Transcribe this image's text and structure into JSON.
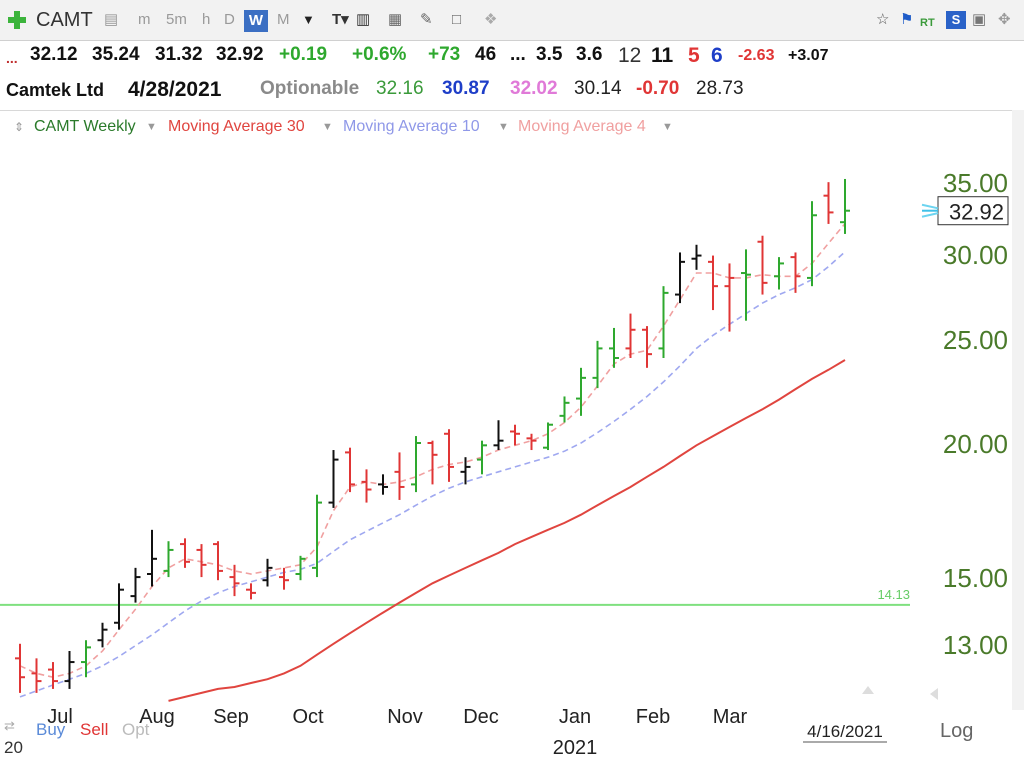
{
  "toolbar": {
    "symbol": "CAMT",
    "items": [
      "m",
      "5m",
      "h",
      "D",
      "W",
      "M"
    ],
    "active": "W",
    "rt": "RT"
  },
  "quote_line1": {
    "ellipsis": "...",
    "open": "32.12",
    "high": "35.24",
    "low": "31.32",
    "close": "32.92",
    "change": "+0.19",
    "change_pct": "+0.6%",
    "v1": "+73",
    "v2": "46",
    "dots": "...",
    "v3": "3.5",
    "v4": "3.6",
    "v5": "12",
    "v6": "11",
    "v7": "5",
    "v8": "6",
    "v9": "-2.63",
    "v10": "+3.07"
  },
  "quote_line2": {
    "name": "Camtek Ltd",
    "date": "4/28/2021",
    "optionable": "Optionable",
    "ma_a": "32.16",
    "ma_b": "30.87",
    "ma_c": "32.02",
    "ma_d": "30.14",
    "ma_e": "-0.70",
    "ma_f": "28.73"
  },
  "legend": {
    "series_main": "CAMT Weekly",
    "ma30": "Moving Average 30",
    "ma10": "Moving Average 10",
    "ma4": "Moving Average 4"
  },
  "colors": {
    "up": "#2ea82e",
    "down": "#e03535",
    "neutral": "#111111",
    "ma30": "#e0453f",
    "ma10": "#9fa8f0",
    "ma4": "#f0a0a0",
    "axis_text": "#4a7a2a",
    "hline": "#7fe07f"
  },
  "footer": {
    "buy": "Buy",
    "sell": "Sell",
    "opt": "Opt",
    "year_prefix": "20",
    "log": "Log"
  },
  "chart_data": {
    "type": "ohlc",
    "scale": "log",
    "ylim": [
      11.4,
      37.5
    ],
    "yticks": [
      "35.00",
      "30.00",
      "25.00",
      "20.00",
      "15.00",
      "13.00"
    ],
    "last_price": "32.92",
    "hline": {
      "value": 14.13,
      "label": "14.13"
    },
    "x_labels": [
      "Jul",
      "Aug",
      "Sep",
      "Oct",
      "Nov",
      "Dec",
      "Jan",
      "Feb",
      "Mar"
    ],
    "year_label": "2021",
    "date_label": "4/16/2021",
    "bars": [
      {
        "o": 12.6,
        "h": 13.0,
        "l": 11.7,
        "c": 12.1,
        "d": "down"
      },
      {
        "o": 12.2,
        "h": 12.6,
        "l": 11.7,
        "c": 12.0,
        "d": "down"
      },
      {
        "o": 12.3,
        "h": 12.5,
        "l": 11.8,
        "c": 12.0,
        "d": "down"
      },
      {
        "o": 12.0,
        "h": 12.8,
        "l": 11.8,
        "c": 12.5,
        "d": "neutral"
      },
      {
        "o": 12.5,
        "h": 13.1,
        "l": 12.1,
        "c": 12.9,
        "d": "up"
      },
      {
        "o": 13.1,
        "h": 13.6,
        "l": 12.9,
        "c": 13.4,
        "d": "neutral"
      },
      {
        "o": 13.6,
        "h": 14.8,
        "l": 13.4,
        "c": 14.6,
        "d": "neutral"
      },
      {
        "o": 14.4,
        "h": 15.3,
        "l": 14.2,
        "c": 15.0,
        "d": "neutral"
      },
      {
        "o": 15.1,
        "h": 16.6,
        "l": 14.7,
        "c": 15.6,
        "d": "neutral"
      },
      {
        "o": 15.2,
        "h": 16.2,
        "l": 15.0,
        "c": 15.9,
        "d": "up"
      },
      {
        "o": 16.1,
        "h": 16.3,
        "l": 15.3,
        "c": 15.5,
        "d": "down"
      },
      {
        "o": 15.9,
        "h": 16.1,
        "l": 15.0,
        "c": 15.4,
        "d": "down"
      },
      {
        "o": 16.1,
        "h": 16.2,
        "l": 14.9,
        "c": 15.2,
        "d": "down"
      },
      {
        "o": 15.0,
        "h": 15.4,
        "l": 14.4,
        "c": 14.8,
        "d": "down"
      },
      {
        "o": 14.6,
        "h": 14.8,
        "l": 14.3,
        "c": 14.5,
        "d": "down"
      },
      {
        "o": 14.9,
        "h": 15.6,
        "l": 14.7,
        "c": 15.3,
        "d": "neutral"
      },
      {
        "o": 15.0,
        "h": 15.3,
        "l": 14.6,
        "c": 14.9,
        "d": "down"
      },
      {
        "o": 15.1,
        "h": 15.7,
        "l": 14.9,
        "c": 15.6,
        "d": "up"
      },
      {
        "o": 15.3,
        "h": 17.9,
        "l": 15.0,
        "c": 17.6,
        "d": "up"
      },
      {
        "o": 17.6,
        "h": 19.7,
        "l": 17.4,
        "c": 19.3,
        "d": "neutral"
      },
      {
        "o": 19.6,
        "h": 19.8,
        "l": 18.0,
        "c": 18.3,
        "d": "down"
      },
      {
        "o": 18.4,
        "h": 18.9,
        "l": 17.6,
        "c": 18.1,
        "d": "down"
      },
      {
        "o": 18.3,
        "h": 18.7,
        "l": 17.9,
        "c": 18.2,
        "d": "neutral"
      },
      {
        "o": 18.8,
        "h": 19.6,
        "l": 17.7,
        "c": 18.2,
        "d": "down"
      },
      {
        "o": 18.3,
        "h": 20.3,
        "l": 18.0,
        "c": 20.0,
        "d": "up"
      },
      {
        "o": 20.0,
        "h": 20.1,
        "l": 18.3,
        "c": 19.5,
        "d": "down"
      },
      {
        "o": 20.4,
        "h": 20.6,
        "l": 18.4,
        "c": 19.0,
        "d": "down"
      },
      {
        "o": 18.8,
        "h": 19.4,
        "l": 18.3,
        "c": 19.0,
        "d": "neutral"
      },
      {
        "o": 19.3,
        "h": 20.1,
        "l": 18.7,
        "c": 19.9,
        "d": "up"
      },
      {
        "o": 19.9,
        "h": 21.0,
        "l": 19.7,
        "c": 20.1,
        "d": "neutral"
      },
      {
        "o": 20.5,
        "h": 20.8,
        "l": 19.9,
        "c": 20.4,
        "d": "down"
      },
      {
        "o": 20.2,
        "h": 20.4,
        "l": 19.7,
        "c": 20.1,
        "d": "down"
      },
      {
        "o": 19.8,
        "h": 20.9,
        "l": 19.7,
        "c": 20.8,
        "d": "up"
      },
      {
        "o": 21.2,
        "h": 22.1,
        "l": 20.9,
        "c": 21.8,
        "d": "up"
      },
      {
        "o": 22.0,
        "h": 23.5,
        "l": 21.2,
        "c": 23.0,
        "d": "up"
      },
      {
        "o": 23.0,
        "h": 24.9,
        "l": 22.5,
        "c": 24.5,
        "d": "up"
      },
      {
        "o": 24.5,
        "h": 25.6,
        "l": 23.5,
        "c": 24.0,
        "d": "up"
      },
      {
        "o": 24.5,
        "h": 26.4,
        "l": 24.0,
        "c": 25.5,
        "d": "down"
      },
      {
        "o": 25.5,
        "h": 25.7,
        "l": 23.5,
        "c": 24.2,
        "d": "down"
      },
      {
        "o": 24.5,
        "h": 28.0,
        "l": 24.0,
        "c": 27.6,
        "d": "up"
      },
      {
        "o": 27.5,
        "h": 30.1,
        "l": 27.0,
        "c": 29.5,
        "d": "neutral"
      },
      {
        "o": 29.7,
        "h": 30.6,
        "l": 29.0,
        "c": 29.9,
        "d": "neutral"
      },
      {
        "o": 29.5,
        "h": 29.9,
        "l": 26.6,
        "c": 28.0,
        "d": "down"
      },
      {
        "o": 28.0,
        "h": 29.4,
        "l": 25.4,
        "c": 28.5,
        "d": "down"
      },
      {
        "o": 28.8,
        "h": 30.3,
        "l": 26.0,
        "c": 28.7,
        "d": "up"
      },
      {
        "o": 30.8,
        "h": 31.2,
        "l": 27.5,
        "c": 28.2,
        "d": "down"
      },
      {
        "o": 28.6,
        "h": 29.8,
        "l": 27.8,
        "c": 29.4,
        "d": "up"
      },
      {
        "o": 29.8,
        "h": 30.1,
        "l": 27.6,
        "c": 28.6,
        "d": "down"
      },
      {
        "o": 28.5,
        "h": 33.6,
        "l": 28.0,
        "c": 32.6,
        "d": "up"
      },
      {
        "o": 34.0,
        "h": 35.0,
        "l": 32.0,
        "c": 32.8,
        "d": "down"
      },
      {
        "o": 32.12,
        "h": 35.24,
        "l": 31.32,
        "c": 32.92,
        "d": "up"
      }
    ],
    "ma4": [
      12.4,
      12.2,
      12.1,
      12.2,
      12.4,
      12.8,
      13.4,
      14.0,
      14.7,
      15.3,
      15.6,
      15.5,
      15.4,
      15.2,
      15.1,
      15.2,
      15.3,
      15.4,
      16.0,
      17.3,
      18.2,
      18.4,
      18.3,
      18.4,
      18.6,
      18.9,
      19.1,
      19.2,
      19.4,
      19.7,
      19.9,
      20.1,
      20.4,
      20.9,
      21.6,
      22.6,
      23.7,
      24.2,
      24.4,
      25.7,
      27.2,
      28.8,
      28.8,
      28.5,
      28.5,
      28.7,
      28.6,
      28.6,
      29.4,
      30.7,
      32.02
    ],
    "ma10": [
      11.6,
      11.75,
      11.9,
      12.05,
      12.2,
      12.4,
      12.65,
      12.95,
      13.25,
      13.6,
      13.95,
      14.25,
      14.5,
      14.7,
      14.85,
      15.0,
      15.15,
      15.25,
      15.45,
      15.85,
      16.25,
      16.55,
      16.85,
      17.15,
      17.5,
      17.85,
      18.15,
      18.4,
      18.6,
      18.8,
      19.0,
      19.2,
      19.4,
      19.65,
      20.0,
      20.45,
      20.95,
      21.5,
      22.1,
      22.8,
      23.6,
      24.5,
      25.2,
      25.8,
      26.4,
      27.0,
      27.5,
      27.9,
      28.4,
      29.2,
      30.14
    ],
    "ma30": [
      null,
      null,
      null,
      null,
      null,
      null,
      null,
      null,
      null,
      11.5,
      11.6,
      11.7,
      11.8,
      11.85,
      11.95,
      12.05,
      12.2,
      12.4,
      12.7,
      13.0,
      13.3,
      13.6,
      13.9,
      14.2,
      14.5,
      14.8,
      15.05,
      15.3,
      15.55,
      15.8,
      16.1,
      16.35,
      16.6,
      16.85,
      17.15,
      17.5,
      17.85,
      18.2,
      18.6,
      19.0,
      19.45,
      19.9,
      20.3,
      20.7,
      21.1,
      21.5,
      21.95,
      22.45,
      22.95,
      23.4,
      23.9
    ]
  }
}
